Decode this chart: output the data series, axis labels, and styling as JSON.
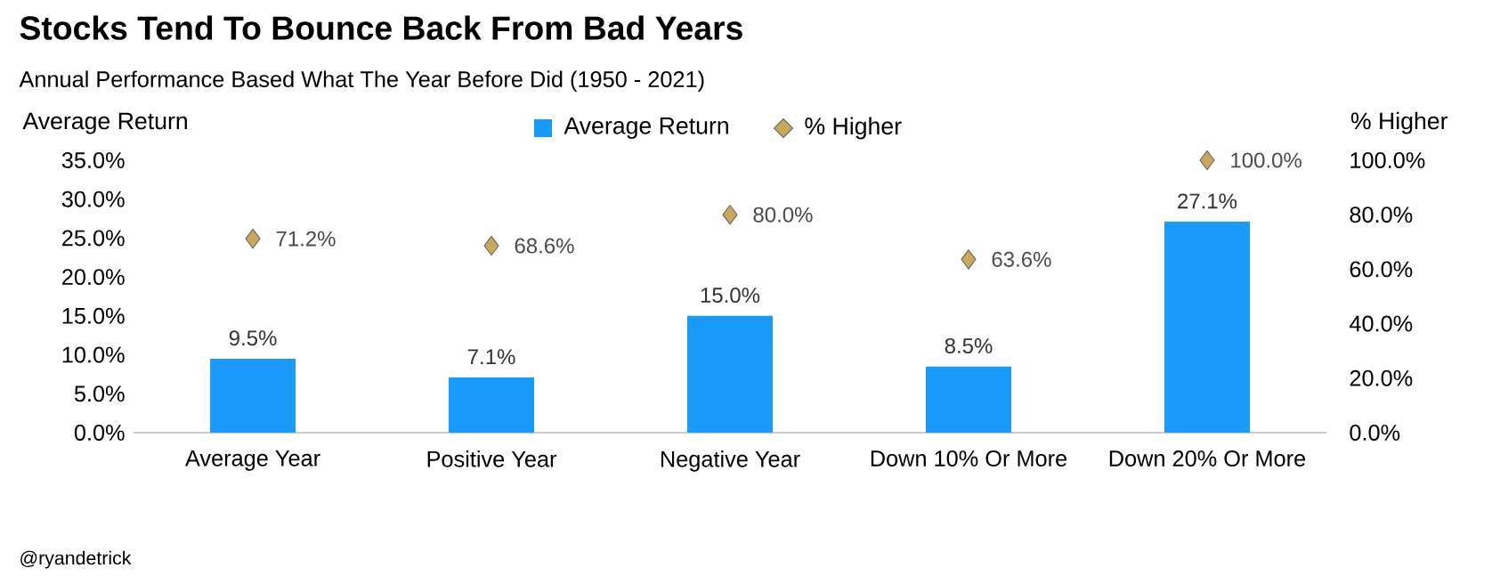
{
  "chart_data": {
    "type": "bar",
    "title": "Stocks Tend To Bounce Back From Bad Years",
    "subtitle": "Annual Performance Based What The Year Before Did (1950 - 2021)",
    "ylabel": "Average Return",
    "y2label": "% Higher",
    "categories": [
      "Average Year",
      "Positive Year",
      "Negative Year",
      "Down 10% Or More",
      "Down 20% Or More"
    ],
    "series": [
      {
        "name": "Average Return",
        "color": "#1a9bfc",
        "values": [
          9.5,
          7.1,
          15.0,
          8.5,
          27.1
        ],
        "value_labels": [
          "9.5%",
          "7.1%",
          "15.0%",
          "8.5%",
          "27.1%"
        ]
      },
      {
        "name": "% Higher",
        "type": "scatter",
        "axis": "y2",
        "marker": "diamond",
        "color": "#c9a85c",
        "values": [
          71.2,
          68.6,
          80.0,
          63.6,
          100.0
        ],
        "value_labels": [
          "71.2%",
          "68.6%",
          "80.0%",
          "63.6%",
          "100.0%"
        ]
      }
    ],
    "ylim": [
      0,
      35
    ],
    "yticks": [
      {
        "value": 0,
        "label": "0.0%"
      },
      {
        "value": 5,
        "label": "5.0%"
      },
      {
        "value": 10,
        "label": "10.0%"
      },
      {
        "value": 15,
        "label": "15.0%"
      },
      {
        "value": 20,
        "label": "20.0%"
      },
      {
        "value": 25,
        "label": "25.0%"
      },
      {
        "value": 30,
        "label": "30.0%"
      },
      {
        "value": 35,
        "label": "35.0%"
      }
    ],
    "y2lim": [
      0,
      100
    ],
    "y2ticks": [
      {
        "value": 0,
        "label": "0.0%"
      },
      {
        "value": 20,
        "label": "20.0%"
      },
      {
        "value": 40,
        "label": "40.0%"
      },
      {
        "value": 60,
        "label": "60.0%"
      },
      {
        "value": 80,
        "label": "80.0%"
      },
      {
        "value": 100,
        "label": "100.0%"
      }
    ],
    "legend": "top",
    "grid": false,
    "annotations": [
      "@ryandetrick"
    ]
  }
}
